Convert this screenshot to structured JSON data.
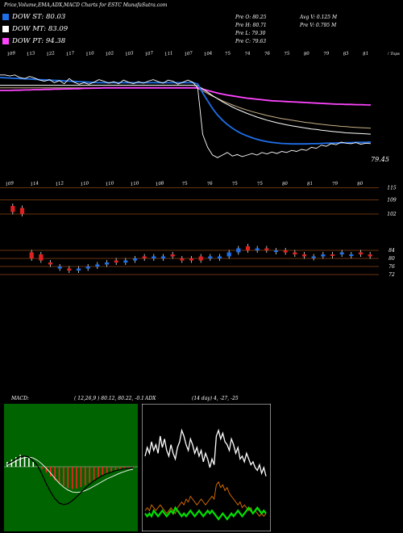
{
  "header": {
    "title": "Price,Volume,EMA,ADX,MACD Charts for ESTC MunafaSutra.com",
    "legend": [
      {
        "label": "DOW ST: 80.03",
        "color": "#1e6fe8"
      },
      {
        "label": "DOW MT: 83.09",
        "color": "#ffffff"
      },
      {
        "label": "DOW PT: 94.38",
        "color": "#ff44ff"
      }
    ],
    "stats": {
      "prev_open": "Pre O: 80.25",
      "prev_high": "Pre H: 80.71",
      "prev_low": "Pre L: 79.30",
      "prev_close": "Pre C: 79.63",
      "avg_volume": "Avg V: 0.125 M",
      "prev_volume": "Pre V: 0.795 M"
    }
  },
  "chart_data": [
    {
      "type": "line",
      "name": "price-ema",
      "top_labels": [
        "109",
        "113",
        "122",
        "117",
        "110",
        "102",
        "103",
        "107",
        "111",
        "107",
        "104",
        "75",
        "74",
        "76",
        "75",
        "80",
        "79",
        "83",
        "81"
      ],
      "right_label": "⁞ Tops",
      "last_price_label": "79.45",
      "series": [
        {
          "name": "price",
          "color": "#ffffff",
          "values": [
            106,
            106,
            105.6,
            106,
            105,
            104.6,
            105.4,
            104.8,
            104,
            103.6,
            104.2,
            103,
            103.8,
            102.6,
            104.6,
            103.2,
            102.4,
            103,
            102.4,
            103.2,
            104.2,
            103.6,
            102.8,
            103.4,
            102.6,
            104,
            103.2,
            102.6,
            103.4,
            102.8,
            103.6,
            104.2,
            103.4,
            102.8,
            104,
            103.6,
            102.4,
            103.2,
            104,
            103.2,
            101,
            83,
            78,
            75,
            74,
            75,
            76,
            74.6,
            75.2,
            74.4,
            75,
            75.6,
            75,
            76,
            75.4,
            76.2,
            75.6,
            76.4,
            76,
            76.8,
            76.4,
            77.2,
            76.8,
            78,
            77.6,
            78.8,
            78.4,
            79.4,
            79,
            80,
            79.6,
            79.4,
            79.8,
            79.2,
            79.6,
            79.45
          ]
        },
        {
          "name": "ema-short",
          "color": "#1e6fe8",
          "values": [
            105,
            104.9,
            104.8,
            104.7,
            104.6,
            104.5,
            104.4,
            104.3,
            104.2,
            104.1,
            104,
            103.9,
            103.8,
            103.7,
            103.6,
            103.5,
            103.4,
            103.3,
            103.2,
            103.1,
            103,
            103,
            103,
            103,
            103,
            103,
            103,
            103,
            103,
            103,
            103,
            103,
            103,
            103,
            103,
            103,
            103,
            103,
            103,
            103,
            102.5,
            99,
            96,
            93,
            90.5,
            88.5,
            86.8,
            85.4,
            84.2,
            83.2,
            82.4,
            81.7,
            81.1,
            80.6,
            80.2,
            79.9,
            79.7,
            79.5,
            79.4,
            79.3,
            79.3,
            79.3,
            79.3,
            79.4,
            79.4,
            79.5,
            79.6,
            79.6,
            79.7,
            79.7,
            79.8,
            79.8,
            79.9,
            79.9,
            79.9,
            80.03
          ]
        },
        {
          "name": "ema-mid",
          "color": "#ffffff",
          "values": [
            102,
            102,
            102,
            102,
            102,
            102,
            102,
            102,
            102,
            102,
            102,
            102,
            102,
            102,
            102,
            102,
            102,
            102,
            102,
            102,
            102,
            102,
            102,
            102,
            102,
            102,
            102,
            102,
            102,
            102,
            102,
            102,
            102,
            102,
            102,
            102,
            102,
            102,
            102,
            102,
            101.8,
            100.6,
            99.3,
            98,
            96.8,
            95.6,
            94.6,
            93.6,
            92.7,
            91.9,
            91.1,
            90.4,
            89.7,
            89.1,
            88.5,
            88,
            87.5,
            87.1,
            86.7,
            86.3,
            86,
            85.7,
            85.4,
            85.1,
            84.9,
            84.6,
            84.4,
            84.2,
            84,
            83.8,
            83.6,
            83.5,
            83.4,
            83.3,
            83.2,
            83.09
          ]
        },
        {
          "name": "ema-long",
          "color": "#ff44ff",
          "values": [
            100,
            100,
            100,
            100.1,
            100.1,
            100.2,
            100.2,
            100.3,
            100.3,
            100.4,
            100.4,
            100.5,
            100.5,
            100.6,
            100.6,
            100.7,
            100.7,
            100.8,
            100.8,
            100.9,
            100.9,
            101,
            101,
            101,
            101,
            101,
            101,
            101,
            101,
            101,
            101,
            101,
            101,
            101,
            101,
            101,
            101,
            101,
            101,
            101,
            101,
            100.5,
            100,
            99.5,
            99,
            98.6,
            98.2,
            97.9,
            97.6,
            97.3,
            97,
            96.8,
            96.6,
            96.4,
            96.2,
            96,
            95.9,
            95.8,
            95.7,
            95.6,
            95.5,
            95.4,
            95.3,
            95.2,
            95.1,
            95,
            94.9,
            94.8,
            94.7,
            94.7,
            94.6,
            94.6,
            94.5,
            94.5,
            94.4,
            94.38
          ]
        },
        {
          "name": "ema-extra",
          "color": "#c8b088",
          "values": [
            101,
            101,
            101,
            101,
            101,
            101,
            101,
            101,
            101,
            101,
            101,
            101,
            101,
            101,
            101,
            101,
            101,
            101,
            101,
            101,
            101,
            101,
            101,
            101,
            101,
            101,
            101,
            101,
            101,
            101,
            101,
            101,
            101,
            101,
            101,
            101,
            101,
            101,
            101,
            101,
            100.8,
            99.8,
            98.8,
            97.8,
            96.9,
            96,
            95.2,
            94.4,
            93.7,
            93,
            92.4,
            91.8,
            91.3,
            90.8,
            90.3,
            89.9,
            89.5,
            89.1,
            88.8,
            88.5,
            88.2,
            87.9,
            87.6,
            87.4,
            87.1,
            86.9,
            86.7,
            86.5,
            86.3,
            86.1,
            86,
            85.8,
            85.7,
            85.6,
            85.5,
            85.4
          ]
        }
      ]
    },
    {
      "type": "bar",
      "name": "candles",
      "top_labels": [
        "109",
        "114",
        "112",
        "110",
        "110",
        "110",
        "108",
        "75",
        "76",
        "75",
        "75",
        "80",
        "81",
        "79",
        "80"
      ],
      "y_ticks": [
        "115",
        "109",
        "102",
        "84",
        "80",
        "76",
        "72"
      ],
      "ylim": [
        70,
        116
      ],
      "candles": [
        {
          "o": 103,
          "c": 106,
          "up": false
        },
        {
          "o": 102,
          "c": 105,
          "up": false
        },
        {
          "o": 83,
          "c": 80,
          "up": false
        },
        {
          "o": 82,
          "c": 79,
          "up": false
        },
        {
          "o": 77,
          "c": 78,
          "up": false
        },
        {
          "o": 75,
          "c": 76,
          "up": true
        },
        {
          "o": 75,
          "c": 74,
          "up": false
        },
        {
          "o": 74,
          "c": 75,
          "up": true
        },
        {
          "o": 75,
          "c": 76,
          "up": true
        },
        {
          "o": 76,
          "c": 77,
          "up": true
        },
        {
          "o": 77,
          "c": 78,
          "up": true
        },
        {
          "o": 78,
          "c": 79,
          "up": false
        },
        {
          "o": 78,
          "c": 79,
          "up": true
        },
        {
          "o": 79,
          "c": 80,
          "up": true
        },
        {
          "o": 80,
          "c": 81,
          "up": false
        },
        {
          "o": 80,
          "c": 81,
          "up": true
        },
        {
          "o": 80,
          "c": 81,
          "up": true
        },
        {
          "o": 81,
          "c": 82,
          "up": false
        },
        {
          "o": 79,
          "c": 80,
          "up": false
        },
        {
          "o": 79,
          "c": 80,
          "up": false
        },
        {
          "o": 79,
          "c": 81,
          "up": false
        },
        {
          "o": 80,
          "c": 81,
          "up": true
        },
        {
          "o": 80,
          "c": 81,
          "up": true
        },
        {
          "o": 81,
          "c": 83,
          "up": true
        },
        {
          "o": 83,
          "c": 85,
          "up": true
        },
        {
          "o": 86,
          "c": 84,
          "up": false
        },
        {
          "o": 84,
          "c": 85,
          "up": true
        },
        {
          "o": 84,
          "c": 85,
          "up": false
        },
        {
          "o": 84,
          "c": 84,
          "up": true
        },
        {
          "o": 84,
          "c": 83,
          "up": false
        },
        {
          "o": 83,
          "c": 82,
          "up": false
        },
        {
          "o": 82,
          "c": 81,
          "up": false
        },
        {
          "o": 81,
          "c": 81,
          "up": true
        },
        {
          "o": 81,
          "c": 82,
          "up": true
        },
        {
          "o": 82,
          "c": 82,
          "up": false
        },
        {
          "o": 82,
          "c": 83,
          "up": true
        },
        {
          "o": 82,
          "c": 82,
          "up": true
        },
        {
          "o": 82,
          "c": 83,
          "up": false
        },
        {
          "o": 81,
          "c": 82,
          "up": false
        }
      ]
    },
    {
      "type": "area",
      "name": "macd",
      "label": "MACD:",
      "values_label": "( 12,26,9 ) 80.12, 80.22, -0.1",
      "histogram": [
        1,
        1.5,
        2,
        2.5,
        2.2,
        1.8,
        1,
        0.2,
        -0.5,
        -1.2,
        -2,
        -2.8,
        -3.5,
        -4,
        -4.4,
        -4.6,
        -4.5,
        -4.2,
        -3.8,
        -3.3,
        -2.8,
        -2.3,
        -1.8,
        -1.4,
        -1,
        -0.7,
        -0.5,
        -0.3,
        -0.2,
        -0.1
      ],
      "macd_line": [
        0.5,
        1,
        1.6,
        2.1,
        2.2,
        2,
        1.2,
        0.2,
        -1.5,
        -3.5,
        -5.2,
        -6.6,
        -7.5,
        -7.8,
        -7.6,
        -7,
        -6.2,
        -5.3,
        -4.4,
        -3.6,
        -2.9,
        -2.3,
        -1.8,
        -1.4,
        -1.1,
        -0.8,
        -0.6,
        -0.4,
        -0.3,
        -0.2
      ],
      "signal_line": [
        0.3,
        0.7,
        1.2,
        1.6,
        1.9,
        2,
        1.8,
        1.3,
        0.6,
        -0.3,
        -1.3,
        -2.4,
        -3.4,
        -4.2,
        -4.8,
        -5.2,
        -5.3,
        -5.2,
        -4.9,
        -4.5,
        -4,
        -3.5,
        -3,
        -2.5,
        -2.1,
        -1.7,
        -1.3,
        -1,
        -0.7,
        -0.5
      ]
    },
    {
      "type": "line",
      "name": "adx",
      "label": "ADX",
      "values_label": "(14 day) 4, -27, -25",
      "series": [
        {
          "name": "adx",
          "color": "#ffffff",
          "values": [
            24,
            27,
            25,
            29,
            26,
            28,
            25,
            31,
            27,
            30,
            26,
            24,
            28,
            25,
            23,
            27,
            29,
            33,
            31,
            28,
            26,
            30,
            28,
            25,
            27,
            24,
            26,
            22,
            25,
            23,
            20,
            23,
            21,
            31,
            33,
            30,
            32,
            29,
            28,
            26,
            30,
            28,
            25,
            27,
            23,
            24,
            22,
            25,
            23,
            21,
            22,
            20,
            19,
            21,
            18,
            20,
            17
          ]
        },
        {
          "name": "plus-di",
          "color": "#00e000",
          "values": [
            4,
            3,
            4,
            3,
            5,
            4,
            3,
            4,
            5,
            4,
            3,
            4,
            5,
            4,
            6,
            5,
            4,
            3,
            4,
            3,
            4,
            5,
            4,
            3,
            4,
            5,
            4,
            3,
            4,
            5,
            4,
            5,
            4,
            3,
            2,
            3,
            4,
            3,
            2,
            3,
            4,
            3,
            4,
            5,
            4,
            3,
            4,
            5,
            6,
            5,
            4,
            5,
            6,
            5,
            4,
            5,
            4
          ]
        },
        {
          "name": "minus-di",
          "color": "#e07000",
          "values": [
            5,
            6,
            5,
            7,
            6,
            5,
            6,
            7,
            6,
            5,
            4,
            5,
            6,
            5,
            4,
            6,
            7,
            8,
            7,
            9,
            8,
            10,
            9,
            8,
            7,
            8,
            9,
            8,
            7,
            8,
            9,
            10,
            9,
            14,
            15,
            13,
            14,
            12,
            13,
            11,
            10,
            9,
            8,
            7,
            8,
            6,
            7,
            6,
            5,
            6,
            4,
            5,
            4,
            3,
            4,
            3,
            4
          ]
        }
      ]
    }
  ]
}
